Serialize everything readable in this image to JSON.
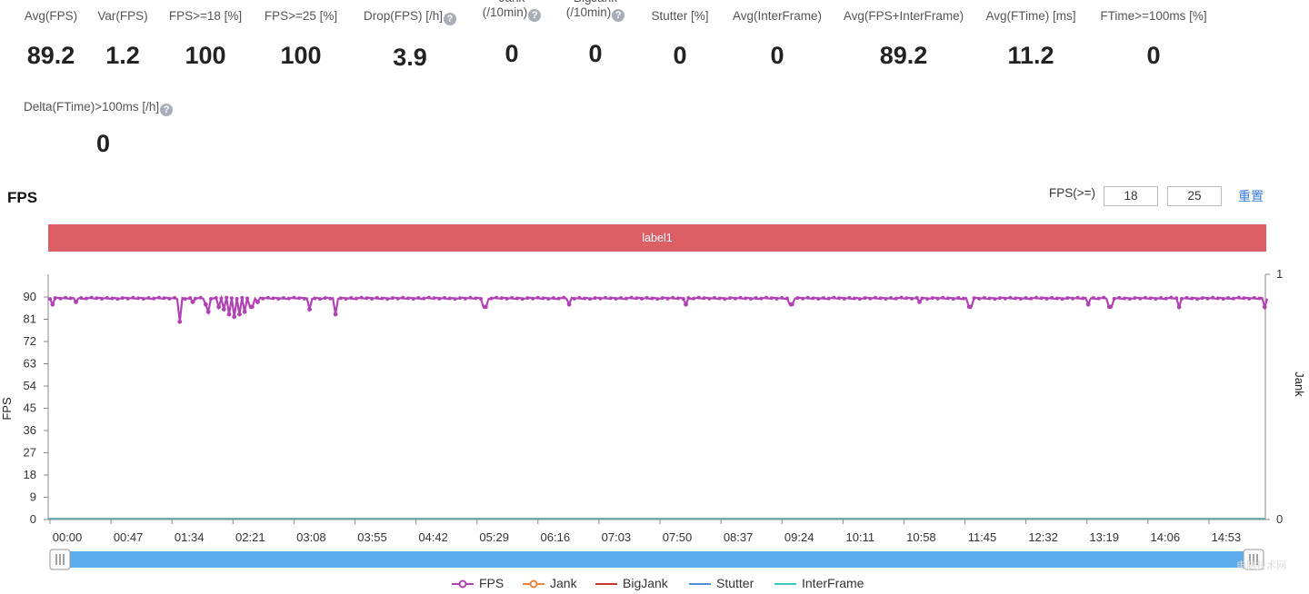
{
  "metrics_row1": [
    {
      "label": "Avg(FPS)",
      "value": "89.2"
    },
    {
      "label": "Var(FPS)",
      "value": "1.2"
    },
    {
      "label": "FPS>=18 [%]",
      "value": "100"
    },
    {
      "label": "FPS>=25 [%]",
      "value": "100"
    },
    {
      "label": "Drop(FPS) [/h]",
      "value": "3.9"
    },
    {
      "label": "Jank",
      "label2": "(/10min)",
      "value": "0"
    },
    {
      "label": "BigJank",
      "label2": "(/10min)",
      "value": "0"
    },
    {
      "label": "Stutter [%]",
      "value": "0"
    },
    {
      "label": "Avg(InterFrame)",
      "value": "0"
    },
    {
      "label": "Avg(FPS+InterFrame)",
      "value": "89.2"
    },
    {
      "label": "Avg(FTime) [ms]",
      "value": "11.2"
    },
    {
      "label": "FTime>=100ms [%]",
      "value": "0"
    }
  ],
  "metrics_row2": [
    {
      "label": "Delta(FTime)>100ms [/h]",
      "value": "0"
    }
  ],
  "help_glyph": "?",
  "section_title": "FPS",
  "threshold": {
    "label": "FPS(>=)",
    "low": "18",
    "high": "25",
    "reset_label": "重置"
  },
  "label_band": "label1",
  "watermark": "电脑技术网",
  "colors": {
    "fps": "#b142b4",
    "jank": "#e8833a",
    "bigjank": "#c8372d",
    "stutter": "#4a90e2",
    "interframe": "#3cc8c0",
    "label_band": "#dd5f66",
    "slider": "#5cabec"
  },
  "chart_data": {
    "type": "line",
    "ylabel": "FPS",
    "y2label": "Jank",
    "ylim": [
      0,
      90
    ],
    "yticks": [
      0,
      9,
      18,
      27,
      36,
      45,
      54,
      63,
      72,
      81,
      90
    ],
    "y2lim": [
      0,
      1
    ],
    "y2ticks": [
      0,
      1
    ],
    "xticks": [
      "00:00",
      "00:47",
      "01:34",
      "02:21",
      "03:08",
      "03:55",
      "04:42",
      "05:29",
      "06:16",
      "07:03",
      "07:50",
      "08:37",
      "09:24",
      "10:11",
      "10:58",
      "11:45",
      "12:32",
      "13:19",
      "14:06",
      "14:53"
    ],
    "duration_s": 939,
    "baseline_fps": 89.5,
    "fps_dips": [
      {
        "t": "00:02",
        "fps": 87
      },
      {
        "t": "00:20",
        "fps": 88
      },
      {
        "t": "01:40",
        "fps": 80
      },
      {
        "t": "01:50",
        "fps": 88
      },
      {
        "t": "02:00",
        "fps": 87
      },
      {
        "t": "02:02",
        "fps": 84
      },
      {
        "t": "02:10",
        "fps": 86
      },
      {
        "t": "02:14",
        "fps": 85
      },
      {
        "t": "02:18",
        "fps": 83
      },
      {
        "t": "02:22",
        "fps": 82
      },
      {
        "t": "02:26",
        "fps": 83
      },
      {
        "t": "02:30",
        "fps": 84
      },
      {
        "t": "02:35",
        "fps": 86
      },
      {
        "t": "02:40",
        "fps": 88
      },
      {
        "t": "03:20",
        "fps": 85
      },
      {
        "t": "03:40",
        "fps": 83
      },
      {
        "t": "05:35",
        "fps": 86
      },
      {
        "t": "06:40",
        "fps": 87
      },
      {
        "t": "08:10",
        "fps": 87
      },
      {
        "t": "09:31",
        "fps": 87
      },
      {
        "t": "11:10",
        "fps": 88
      },
      {
        "t": "11:49",
        "fps": 86
      },
      {
        "t": "13:20",
        "fps": 87
      },
      {
        "t": "13:37",
        "fps": 86
      },
      {
        "t": "14:30",
        "fps": 86
      },
      {
        "t": "15:36",
        "fps": 86
      }
    ],
    "series": [
      {
        "name": "FPS",
        "marker": "circle"
      },
      {
        "name": "Jank",
        "marker": "circle"
      },
      {
        "name": "BigJank",
        "marker": "none"
      },
      {
        "name": "Stutter",
        "marker": "none"
      },
      {
        "name": "InterFrame",
        "marker": "none"
      }
    ]
  }
}
